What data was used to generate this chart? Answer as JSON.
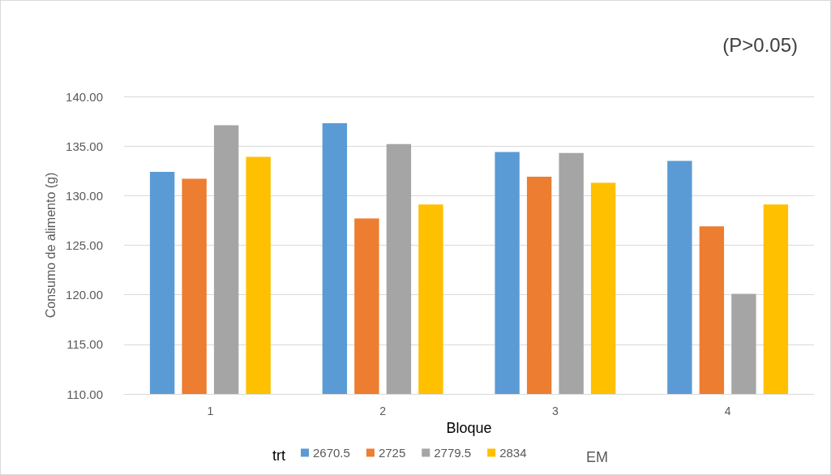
{
  "chart_data": {
    "type": "bar",
    "xlabel": "Bloque",
    "ylabel": "Consumo de alimento (g)",
    "legend_title": "trt",
    "annotations": [
      "(P>0.05)",
      "EM"
    ],
    "categories": [
      "1",
      "2",
      "3",
      "4"
    ],
    "series": [
      {
        "name": "2670.5",
        "color": "#5b9bd5",
        "values": [
          132.4,
          137.3,
          134.4,
          133.5
        ]
      },
      {
        "name": "2725",
        "color": "#ed7d31",
        "values": [
          131.7,
          127.7,
          131.9,
          126.9
        ]
      },
      {
        "name": "2779.5",
        "color": "#a5a5a5",
        "values": [
          137.1,
          135.2,
          134.3,
          120.1
        ]
      },
      {
        "name": "2834",
        "color": "#ffc000",
        "values": [
          133.9,
          129.1,
          131.3,
          129.1
        ]
      }
    ],
    "ylim": [
      110,
      140
    ],
    "yticks": [
      {
        "value": 110,
        "label": "110.00"
      },
      {
        "value": 115,
        "label": "115.00"
      },
      {
        "value": 120,
        "label": "120.00"
      },
      {
        "value": 125,
        "label": "125.00"
      },
      {
        "value": 130,
        "label": "130.00"
      },
      {
        "value": 135,
        "label": "135.00"
      },
      {
        "value": 140,
        "label": "140.00"
      }
    ],
    "grid": "y",
    "legend": "bottom"
  }
}
